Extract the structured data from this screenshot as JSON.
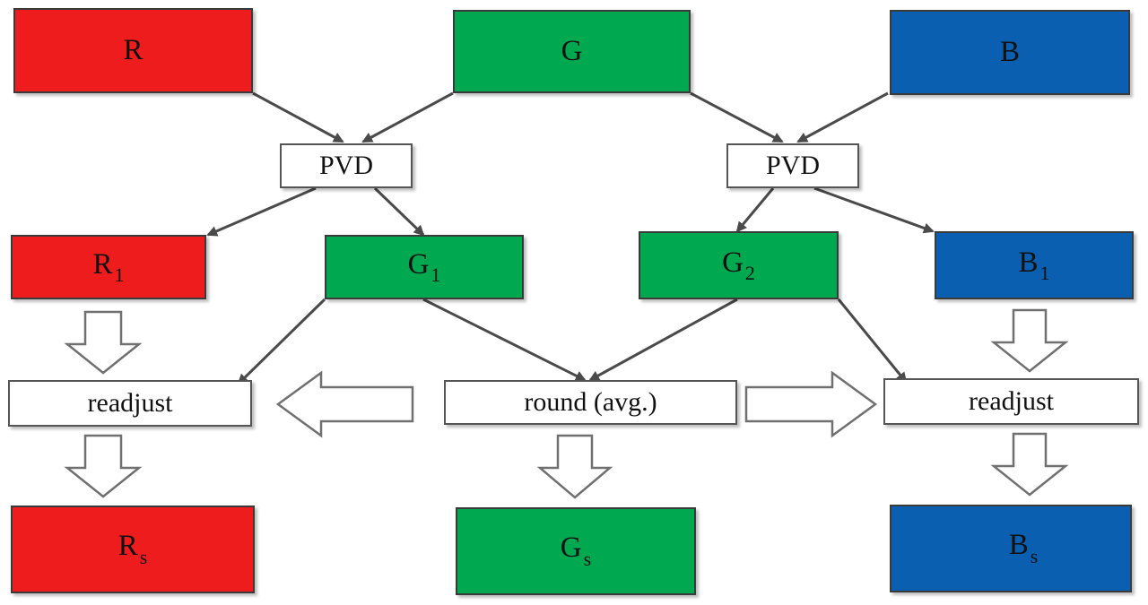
{
  "top": {
    "r": "R",
    "g": "G",
    "b": "B"
  },
  "pvd": {
    "left": "PVD",
    "right": "PVD"
  },
  "level1": {
    "r1": {
      "base": "R",
      "sub": "1"
    },
    "g1": {
      "base": "G",
      "sub": "1"
    },
    "g2": {
      "base": "G",
      "sub": "2"
    },
    "b1": {
      "base": "B",
      "sub": "1"
    }
  },
  "process": {
    "readjust_left": "readjust",
    "round_avg": "round (avg.)",
    "readjust_right": "readjust"
  },
  "output": {
    "rs": {
      "base": "R",
      "sub": "s"
    },
    "gs": {
      "base": "G",
      "sub": "s"
    },
    "bs": {
      "base": "B",
      "sub": "s"
    }
  },
  "colors": {
    "red": "#ee1c1c",
    "green": "#00a84f",
    "blue": "#0b5fb0",
    "arrow": "#4a4a4a"
  }
}
